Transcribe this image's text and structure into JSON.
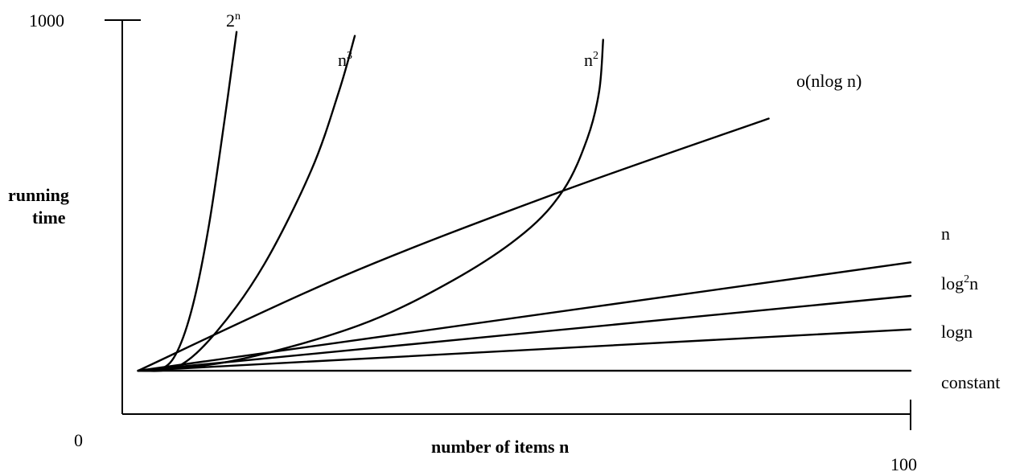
{
  "chart_data": {
    "type": "line",
    "xlabel": "number of items n",
    "ylabel": [
      "running",
      "time"
    ],
    "xlim": [
      0,
      100
    ],
    "ylim": [
      0,
      1000
    ],
    "x_ticks": [
      {
        "value": 0,
        "label": "0"
      },
      {
        "value": 100,
        "label": "100"
      }
    ],
    "y_ticks": [
      {
        "value": 1000,
        "label": "1000"
      }
    ],
    "grid": false,
    "legend": "none",
    "series": [
      {
        "id": "exp",
        "label": {
          "base": "2",
          "sup": "n",
          "tail": ""
        },
        "points": [
          [
            2,
            110
          ],
          [
            5,
            115
          ],
          [
            7,
            160
          ],
          [
            9,
            280
          ],
          [
            11,
            480
          ],
          [
            13,
            750
          ],
          [
            14.5,
            970
          ]
        ]
      },
      {
        "id": "cubic",
        "label": {
          "base": "n",
          "sup": "3",
          "tail": ""
        },
        "points": [
          [
            2,
            110
          ],
          [
            7,
            120
          ],
          [
            12,
            210
          ],
          [
            18,
            380
          ],
          [
            24,
            620
          ],
          [
            27.5,
            820
          ],
          [
            29.5,
            960
          ]
        ]
      },
      {
        "id": "quadratic",
        "label": {
          "base": "n",
          "sup": "2",
          "tail": ""
        },
        "points": [
          [
            2,
            110
          ],
          [
            14,
            135
          ],
          [
            30,
            225
          ],
          [
            42,
            340
          ],
          [
            51,
            460
          ],
          [
            56,
            570
          ],
          [
            59,
            700
          ],
          [
            60.5,
            820
          ],
          [
            61,
            950
          ]
        ]
      },
      {
        "id": "nlogn",
        "label": {
          "base": "o(nlog n)",
          "sup": "",
          "tail": ""
        },
        "points": [
          [
            2,
            110
          ],
          [
            28,
            350
          ],
          [
            55,
            560
          ],
          [
            82,
            750
          ]
        ]
      },
      {
        "id": "linear",
        "label": {
          "base": "n",
          "sup": "",
          "tail": ""
        },
        "points": [
          [
            2,
            110
          ],
          [
            100,
            385
          ]
        ]
      },
      {
        "id": "log2",
        "label": {
          "base": "log",
          "sup": "2",
          "tail": "n"
        },
        "points": [
          [
            2,
            110
          ],
          [
            100,
            300
          ]
        ]
      },
      {
        "id": "log",
        "label": {
          "base": "logn",
          "sup": "",
          "tail": ""
        },
        "points": [
          [
            2,
            110
          ],
          [
            100,
            215
          ]
        ]
      },
      {
        "id": "constant",
        "label": {
          "base": "constant",
          "sup": "",
          "tail": ""
        },
        "points": [
          [
            2,
            110
          ],
          [
            100,
            110
          ]
        ]
      }
    ]
  }
}
